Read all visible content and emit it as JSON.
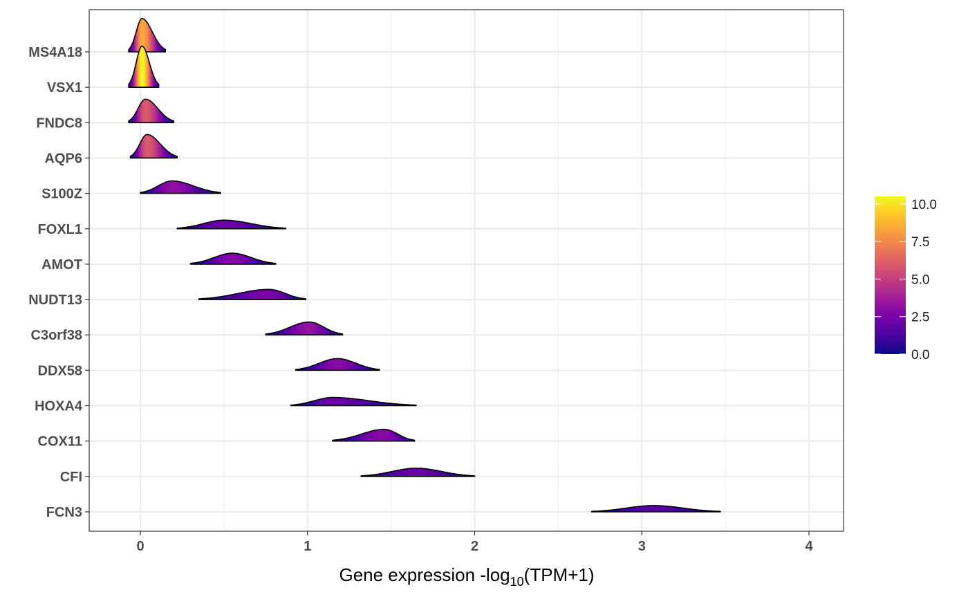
{
  "chart_data": {
    "type": "ridgeline",
    "title": "",
    "xlabel_prefix": "Gene expression -log",
    "xlabel_sub": "10",
    "xlabel_suffix": "(TPM+1)",
    "ylabel": "",
    "xlim": [
      -0.3,
      4.2
    ],
    "x_ticks": [
      0,
      1,
      2,
      3,
      4
    ],
    "grid": true,
    "colormap": "plasma",
    "legend": {
      "position": "right",
      "range": [
        0,
        10.5
      ],
      "ticks": [
        "0.0",
        "2.5",
        "5.0",
        "7.5",
        "10.0"
      ],
      "tick_values": [
        0,
        2.5,
        5,
        7.5,
        10
      ]
    },
    "genes": [
      {
        "name": "MS4A18",
        "range": [
          -0.07,
          0.15
        ],
        "mode": 0.01,
        "peak": 8.5
      },
      {
        "name": "VSX1",
        "range": [
          -0.07,
          0.11
        ],
        "mode": 0.01,
        "peak": 10.5
      },
      {
        "name": "FNDC8",
        "range": [
          -0.07,
          0.2
        ],
        "mode": 0.03,
        "peak": 6.0
      },
      {
        "name": "AQP6",
        "range": [
          -0.06,
          0.22
        ],
        "mode": 0.04,
        "peak": 6.0
      },
      {
        "name": "S100Z",
        "range": [
          0.0,
          0.48
        ],
        "mode": 0.19,
        "peak": 3.2
      },
      {
        "name": "FOXL1",
        "range": [
          0.22,
          0.87
        ],
        "mode": 0.5,
        "peak": 2.2
      },
      {
        "name": "AMOT",
        "range": [
          0.3,
          0.81
        ],
        "mode": 0.55,
        "peak": 2.8
      },
      {
        "name": "NUDT13",
        "range": [
          0.35,
          0.99
        ],
        "mode": 0.77,
        "peak": 2.6
      },
      {
        "name": "C3orf38",
        "range": [
          0.75,
          1.21
        ],
        "mode": 1.01,
        "peak": 3.3
      },
      {
        "name": "DDX58",
        "range": [
          0.93,
          1.43
        ],
        "mode": 1.18,
        "peak": 3.0
      },
      {
        "name": "HOXA4",
        "range": [
          0.9,
          1.65
        ],
        "mode": 1.15,
        "peak": 2.1
      },
      {
        "name": "COX11",
        "range": [
          1.15,
          1.64
        ],
        "mode": 1.46,
        "peak": 3.0
      },
      {
        "name": "CFI",
        "range": [
          1.32,
          2.0
        ],
        "mode": 1.65,
        "peak": 2.1
      },
      {
        "name": "FCN3",
        "range": [
          2.7,
          3.47
        ],
        "mode": 3.07,
        "peak": 1.6
      }
    ]
  }
}
